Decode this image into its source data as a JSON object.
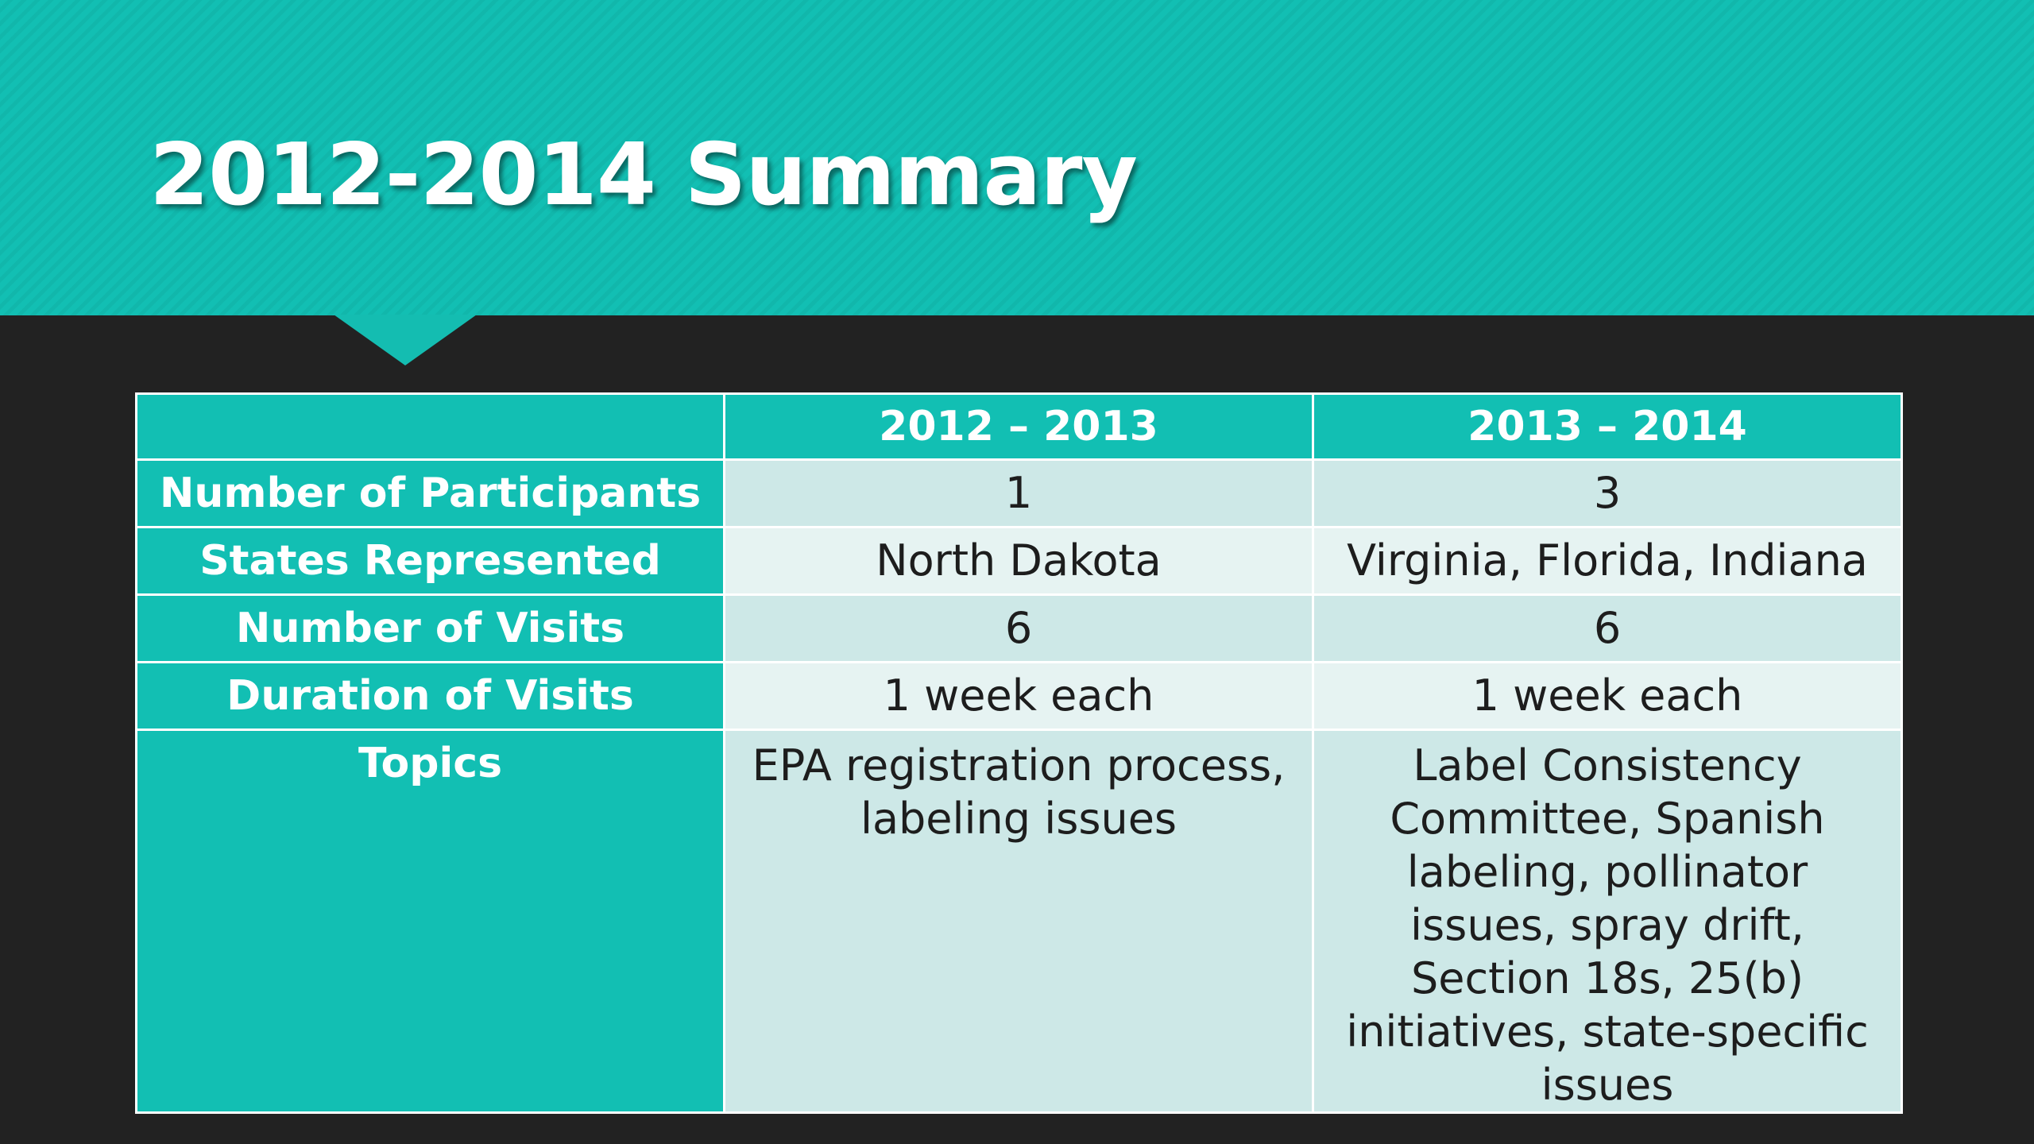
{
  "slide": {
    "title": "2012-2014 Summary"
  },
  "table": {
    "headers": [
      "",
      "2012 – 2013",
      "2013 – 2014"
    ],
    "rows": [
      {
        "label": "Number of Participants",
        "col1": "1",
        "col2": "3"
      },
      {
        "label": "States Represented",
        "col1": "North Dakota",
        "col2": "Virginia, Florida, Indiana"
      },
      {
        "label": "Number of Visits",
        "col1": "6",
        "col2": "6"
      },
      {
        "label": "Duration of Visits",
        "col1": "1 week each",
        "col2": "1 week each"
      },
      {
        "label": "Topics",
        "col1": "EPA registration process, labeling issues",
        "col2": "Label Consistency Committee, Spanish labeling, pollinator issues, spray drift, Section 18s, 25(b) initiatives, state-specific issues"
      }
    ]
  },
  "colors": {
    "accent": "#12bfb3",
    "background": "#222222",
    "cell_light": "#e6f3f2",
    "cell_mid": "#cde8e7"
  }
}
